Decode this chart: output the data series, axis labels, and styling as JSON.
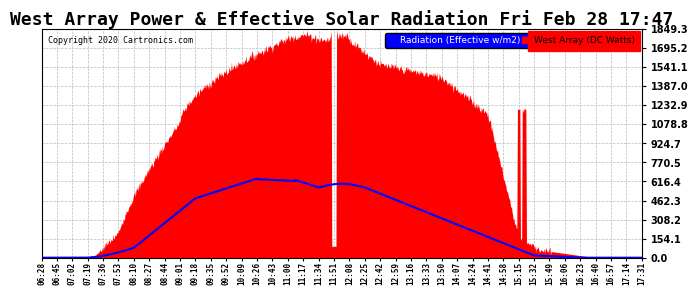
{
  "title": "West Array Power & Effective Solar Radiation Fri Feb 28 17:47",
  "copyright": "Copyright 2020 Cartronics.com",
  "legend_labels": [
    "Radiation (Effective w/m2)",
    "West Array (DC Watts)"
  ],
  "y_ticks": [
    0.0,
    154.1,
    308.2,
    462.3,
    616.4,
    770.5,
    924.7,
    1078.8,
    1232.9,
    1387.0,
    1541.1,
    1695.2,
    1849.3
  ],
  "ylim": [
    0,
    1849.3
  ],
  "background_color": "#ffffff",
  "grid_color": "#bbbbbb",
  "title_fontsize": 13,
  "x_labels": [
    "06:28",
    "06:45",
    "07:02",
    "07:19",
    "07:36",
    "07:53",
    "08:10",
    "08:27",
    "08:44",
    "09:01",
    "09:18",
    "09:35",
    "09:52",
    "10:09",
    "10:26",
    "10:43",
    "11:00",
    "11:17",
    "11:34",
    "11:51",
    "12:08",
    "12:25",
    "12:42",
    "12:59",
    "13:16",
    "13:33",
    "13:50",
    "14:07",
    "14:24",
    "14:41",
    "14:58",
    "15:15",
    "15:32",
    "15:49",
    "16:06",
    "16:23",
    "16:40",
    "16:57",
    "17:14",
    "17:31"
  ]
}
